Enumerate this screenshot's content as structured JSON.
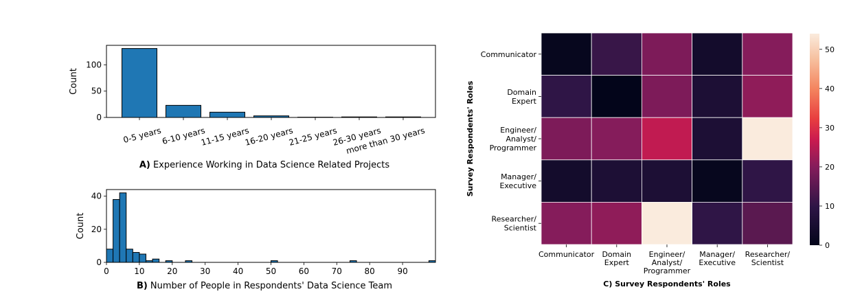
{
  "chart_data": [
    {
      "id": "A",
      "type": "bar",
      "panel_letter": "A)",
      "caption": "Experience Working in Data Science Related Projects",
      "ylabel": "Count",
      "xlabel": "",
      "ylim": [
        0,
        137
      ],
      "yticks": [
        0,
        50,
        100
      ],
      "categories": [
        "0-5 years",
        "6-10 years",
        "11-15 years",
        "16-20 years",
        "21-25 years",
        "26-30 years",
        "more than 30 years"
      ],
      "values": [
        131,
        23,
        10,
        3,
        0.5,
        1,
        1
      ],
      "color": "#1f77b4"
    },
    {
      "id": "B",
      "type": "bar",
      "panel_letter": "B)",
      "caption": "Number of People in Respondents' Data Science Team",
      "ylabel": "Count",
      "xlabel": "",
      "xlim": [
        0,
        100
      ],
      "ylim": [
        0,
        44
      ],
      "xticks": [
        0,
        10,
        20,
        30,
        40,
        50,
        60,
        70,
        80,
        90
      ],
      "yticks": [
        0,
        20,
        40
      ],
      "bin_width": 2,
      "bins": [
        {
          "x": 0,
          "value": 8
        },
        {
          "x": 2,
          "value": 38
        },
        {
          "x": 4,
          "value": 42
        },
        {
          "x": 6,
          "value": 8
        },
        {
          "x": 8,
          "value": 6
        },
        {
          "x": 10,
          "value": 5
        },
        {
          "x": 12,
          "value": 1
        },
        {
          "x": 14,
          "value": 2
        },
        {
          "x": 18,
          "value": 1
        },
        {
          "x": 24,
          "value": 1
        },
        {
          "x": 50,
          "value": 1
        },
        {
          "x": 74,
          "value": 1
        },
        {
          "x": 98,
          "value": 1
        }
      ],
      "color": "#1f77b4"
    },
    {
      "id": "C",
      "type": "heatmap",
      "panel_letter": "C)",
      "caption": "Survey Respondents' Roles",
      "ylabel": "Survey Respondents' Roles",
      "xlabel": "",
      "row_labels": [
        [
          "Communicator"
        ],
        [
          "Domain",
          "Expert"
        ],
        [
          "Engineer/",
          "Analyst/",
          "Programmer"
        ],
        [
          "Manager/",
          "Executive"
        ],
        [
          "Researcher/",
          "Scientist"
        ]
      ],
      "col_labels": [
        [
          "Communicator"
        ],
        [
          "Domain",
          "Expert"
        ],
        [
          "Engineer/",
          "Analyst/",
          "Programmer"
        ],
        [
          "Manager/",
          "Executive"
        ],
        [
          "Researcher/",
          "Scientist"
        ]
      ],
      "matrix": [
        [
          1,
          11,
          19,
          4,
          20
        ],
        [
          10,
          0,
          19,
          6,
          21
        ],
        [
          19,
          20,
          26,
          6,
          54
        ],
        [
          4,
          6,
          6,
          1,
          10
        ],
        [
          20,
          21,
          54,
          10,
          15
        ]
      ],
      "vmin": 0,
      "vmax": 54,
      "colorbar_ticks": [
        0,
        10,
        20,
        30,
        40,
        50
      ],
      "colormap": "rocket"
    }
  ]
}
